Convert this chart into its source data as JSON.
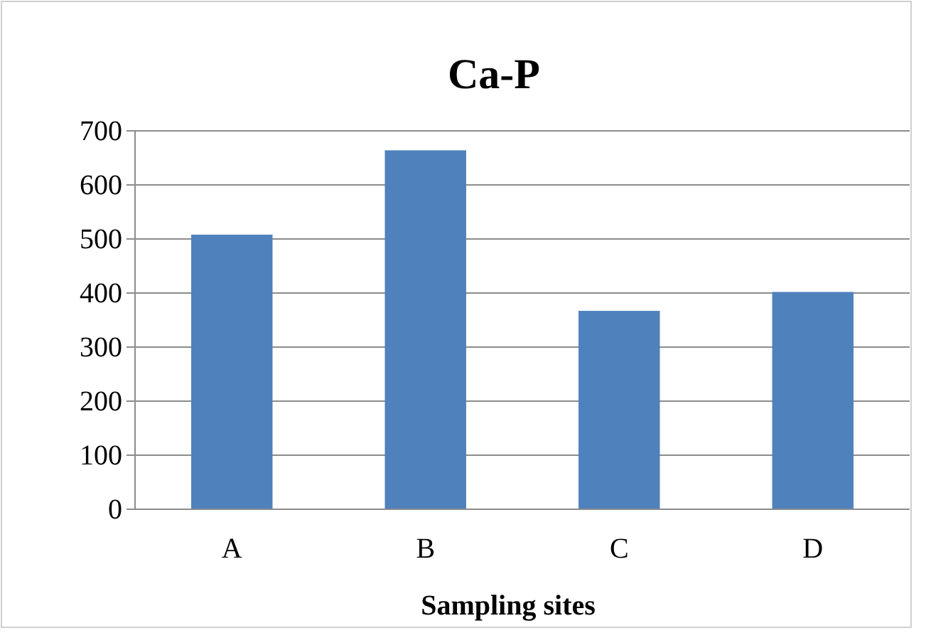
{
  "chart_data": {
    "type": "bar",
    "title": "Ca-P",
    "xlabel": "Sampling sites",
    "categories": [
      "A",
      "B",
      "C",
      "D"
    ],
    "values": [
      508,
      664,
      367,
      402
    ],
    "color": "#4f81bd",
    "ylim": [
      0,
      700
    ],
    "yticks": [
      0,
      100,
      200,
      300,
      400,
      500,
      600,
      700
    ],
    "grid": "y"
  }
}
